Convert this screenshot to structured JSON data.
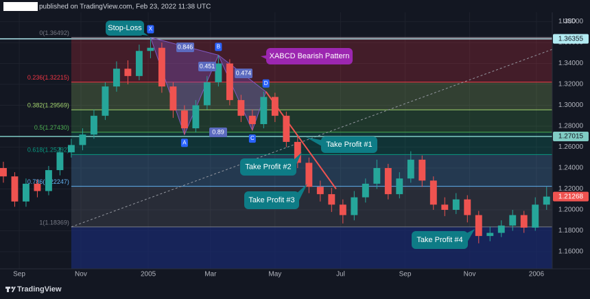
{
  "header": {
    "text": "published on TradingView.com, Feb 23, 2022 11:38 UTC"
  },
  "footer": {
    "brand": "TradingView"
  },
  "chart_data": {
    "type": "candlestick",
    "currency": "USD",
    "categories": [
      null,
      null,
      null,
      null,
      null,
      null,
      null,
      null,
      null,
      null,
      null,
      null,
      null,
      null,
      null,
      null,
      null,
      null,
      null,
      null,
      null,
      null,
      null,
      null,
      null,
      null,
      null,
      null,
      null,
      null,
      null,
      null,
      null,
      null,
      null,
      null,
      null,
      null,
      null,
      null,
      null,
      null,
      null,
      null,
      null,
      null,
      null,
      null,
      null
    ],
    "open": [
      1.24,
      1.232,
      1.208,
      1.225,
      1.218,
      1.238,
      1.255,
      1.262,
      1.272,
      1.29,
      1.318,
      1.335,
      1.328,
      1.352,
      1.355,
      1.318,
      1.295,
      1.278,
      1.3,
      1.322,
      1.34,
      1.305,
      1.29,
      1.282,
      1.308,
      1.29,
      1.265,
      1.245,
      1.222,
      1.215,
      1.205,
      1.195,
      1.212,
      1.225,
      1.24,
      1.215,
      1.23,
      1.248,
      1.228,
      1.205,
      1.2,
      1.21,
      1.195,
      1.175,
      1.178,
      1.185,
      1.195,
      1.183,
      1.205
    ],
    "high": [
      1.246,
      1.236,
      1.23,
      1.229,
      1.242,
      1.26,
      1.268,
      1.278,
      1.296,
      1.322,
      1.342,
      1.343,
      1.358,
      1.3649,
      1.36,
      1.322,
      1.3,
      1.305,
      1.328,
      1.348,
      1.344,
      1.31,
      1.296,
      1.313,
      1.312,
      1.294,
      1.27,
      1.25,
      1.228,
      1.221,
      1.21,
      1.218,
      1.23,
      1.248,
      1.244,
      1.236,
      1.256,
      1.252,
      1.232,
      1.212,
      1.216,
      1.214,
      1.199,
      1.184,
      1.19,
      1.2,
      1.199,
      1.212,
      1.222
    ],
    "low": [
      1.226,
      1.203,
      1.203,
      1.212,
      1.214,
      1.233,
      1.25,
      1.257,
      1.268,
      1.286,
      1.313,
      1.32,
      1.324,
      1.345,
      1.312,
      1.288,
      1.272,
      1.274,
      1.296,
      1.318,
      1.3,
      1.284,
      1.276,
      1.278,
      1.284,
      1.26,
      1.24,
      1.216,
      1.208,
      1.198,
      1.187,
      1.19,
      1.207,
      1.22,
      1.21,
      1.211,
      1.226,
      1.222,
      1.2,
      1.194,
      1.196,
      1.188,
      1.168,
      1.17,
      1.174,
      1.18,
      1.178,
      1.18,
      1.2
    ],
    "close": [
      1.232,
      1.208,
      1.225,
      1.218,
      1.238,
      1.255,
      1.262,
      1.272,
      1.29,
      1.318,
      1.335,
      1.328,
      1.352,
      1.355,
      1.318,
      1.295,
      1.278,
      1.3,
      1.322,
      1.34,
      1.305,
      1.29,
      1.282,
      1.308,
      1.29,
      1.265,
      1.245,
      1.222,
      1.215,
      1.205,
      1.195,
      1.212,
      1.225,
      1.24,
      1.215,
      1.23,
      1.248,
      1.228,
      1.205,
      1.2,
      1.21,
      1.195,
      1.175,
      1.178,
      1.185,
      1.195,
      1.183,
      1.205,
      1.2127
    ],
    "up_color": "#26a69a",
    "down_color": "#ef5350",
    "xlim": [
      -0.3,
      48.5
    ],
    "xticks": [
      {
        "value": 1.4,
        "label": "Sep"
      },
      {
        "value": 6.85,
        "label": "Nov"
      },
      {
        "value": 12.8,
        "label": "2005"
      },
      {
        "value": 18.3,
        "label": "Mar"
      },
      {
        "value": 24.0,
        "label": "May"
      },
      {
        "value": 29.8,
        "label": "Jul"
      },
      {
        "value": 35.5,
        "label": "Sep"
      },
      {
        "value": 41.2,
        "label": "Nov"
      },
      {
        "value": 47.1,
        "label": "2006"
      }
    ],
    "ylim": [
      1.1436,
      1.3889
    ],
    "yticks": [
      {
        "value": 1.16,
        "label": "1.16000"
      },
      {
        "value": 1.18,
        "label": "1.18000"
      },
      {
        "value": 1.2,
        "label": "1.20000"
      },
      {
        "value": 1.22,
        "label": "1.22000"
      },
      {
        "value": 1.24,
        "label": "1.24000"
      },
      {
        "value": 1.26,
        "label": "1.26000"
      },
      {
        "value": 1.28,
        "label": "1.28000"
      },
      {
        "value": 1.3,
        "label": "1.30000"
      },
      {
        "value": 1.32,
        "label": "1.32000"
      },
      {
        "value": 1.34,
        "label": "1.34000"
      },
      {
        "value": 1.36,
        "label": "1.36000"
      },
      {
        "value": 1.38,
        "label": "1.38000"
      }
    ],
    "price_lines": [
      {
        "price": 1.36355,
        "color": "#b2ebf2"
      },
      {
        "price": 1.27015,
        "color": "#80cbc4"
      }
    ],
    "last_price": {
      "price": 1.21268,
      "color": "#ef5350"
    },
    "fib": {
      "start_x": 6,
      "end": {
        "x": 48.5,
        "price": 1.3535
      },
      "levels": [
        {
          "price": 1.36492,
          "label": "0(1.36492)",
          "color": "#787b86"
        },
        {
          "price": 1.32215,
          "label": "0.236(1.32215)",
          "color": "#f23645"
        },
        {
          "price": 1.29569,
          "label": "0.382(1.29569)",
          "color": "#a5d66f"
        },
        {
          "price": 1.2743,
          "label": "0.5(1.27430)",
          "color": "#4caf50"
        },
        {
          "price": 1.25292,
          "label": "0.618(1.25292)",
          "color": "#089981"
        },
        {
          "price": 1.22247,
          "label": "0.786(1.22247)",
          "color": "#64b5f6"
        },
        {
          "price": 1.18369,
          "label": "1(1.18369)",
          "color": "#787b86"
        }
      ]
    },
    "pattern": {
      "name": "XABCD Bearish Pattern",
      "color": "#7e57c2",
      "points": [
        {
          "label": "X",
          "x": 13,
          "price": 1.3649
        },
        {
          "label": "A",
          "x": 16,
          "price": 1.272
        },
        {
          "label": "B",
          "x": 19,
          "price": 1.348
        },
        {
          "label": "C",
          "x": 22,
          "price": 1.276
        },
        {
          "label": "D",
          "x": 23.2,
          "price": 1.313
        }
      ],
      "ratios": [
        0.846,
        0.451,
        0.474,
        0.89
      ]
    },
    "trend_line": {
      "color": "#ef5350",
      "points": [
        {
          "x": 23.2,
          "price": 1.313
        },
        {
          "x": 29.4,
          "price": 1.22
        }
      ]
    },
    "annotations": [
      "Stop-Loss",
      "Take Profit #1",
      "Take Profit #2",
      "Take Profit #3",
      "Take Profit #4"
    ]
  }
}
